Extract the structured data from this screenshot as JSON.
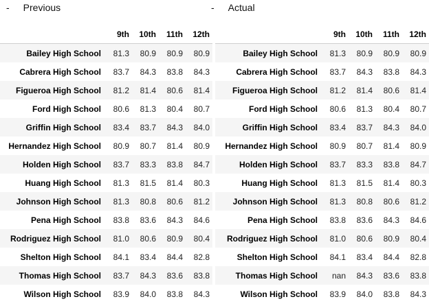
{
  "captions": {
    "left": {
      "dash": "-",
      "label": "Previous"
    },
    "right": {
      "dash": "-",
      "label": "Actual"
    }
  },
  "columns": [
    "9th",
    "10th",
    "11th",
    "12th"
  ],
  "previous": [
    {
      "school": "Bailey High School",
      "values": [
        "81.3",
        "80.9",
        "80.9",
        "80.9"
      ]
    },
    {
      "school": "Cabrera High School",
      "values": [
        "83.7",
        "84.3",
        "83.8",
        "84.3"
      ]
    },
    {
      "school": "Figueroa High School",
      "values": [
        "81.2",
        "81.4",
        "80.6",
        "81.4"
      ]
    },
    {
      "school": "Ford High School",
      "values": [
        "80.6",
        "81.3",
        "80.4",
        "80.7"
      ]
    },
    {
      "school": "Griffin High School",
      "values": [
        "83.4",
        "83.7",
        "84.3",
        "84.0"
      ]
    },
    {
      "school": "Hernandez High School",
      "values": [
        "80.9",
        "80.7",
        "81.4",
        "80.9"
      ]
    },
    {
      "school": "Holden High School",
      "values": [
        "83.7",
        "83.3",
        "83.8",
        "84.7"
      ]
    },
    {
      "school": "Huang High School",
      "values": [
        "81.3",
        "81.5",
        "81.4",
        "80.3"
      ]
    },
    {
      "school": "Johnson High School",
      "values": [
        "81.3",
        "80.8",
        "80.6",
        "81.2"
      ]
    },
    {
      "school": "Pena High School",
      "values": [
        "83.8",
        "83.6",
        "84.3",
        "84.6"
      ]
    },
    {
      "school": "Rodriguez High School",
      "values": [
        "81.0",
        "80.6",
        "80.9",
        "80.4"
      ]
    },
    {
      "school": "Shelton High School",
      "values": [
        "84.1",
        "83.4",
        "84.4",
        "82.8"
      ]
    },
    {
      "school": "Thomas High School",
      "values": [
        "83.7",
        "84.3",
        "83.6",
        "83.8"
      ]
    },
    {
      "school": "Wilson High School",
      "values": [
        "83.9",
        "84.0",
        "83.8",
        "84.3"
      ]
    }
  ],
  "actual": [
    {
      "school": "Bailey High School",
      "values": [
        "81.3",
        "80.9",
        "80.9",
        "80.9"
      ]
    },
    {
      "school": "Cabrera High School",
      "values": [
        "83.7",
        "84.3",
        "83.8",
        "84.3"
      ]
    },
    {
      "school": "Figueroa High School",
      "values": [
        "81.2",
        "81.4",
        "80.6",
        "81.4"
      ]
    },
    {
      "school": "Ford High School",
      "values": [
        "80.6",
        "81.3",
        "80.4",
        "80.7"
      ]
    },
    {
      "school": "Griffin High School",
      "values": [
        "83.4",
        "83.7",
        "84.3",
        "84.0"
      ]
    },
    {
      "school": "Hernandez High School",
      "values": [
        "80.9",
        "80.7",
        "81.4",
        "80.9"
      ]
    },
    {
      "school": "Holden High School",
      "values": [
        "83.7",
        "83.3",
        "83.8",
        "84.7"
      ]
    },
    {
      "school": "Huang High School",
      "values": [
        "81.3",
        "81.5",
        "81.4",
        "80.3"
      ]
    },
    {
      "school": "Johnson High School",
      "values": [
        "81.3",
        "80.8",
        "80.6",
        "81.2"
      ]
    },
    {
      "school": "Pena High School",
      "values": [
        "83.8",
        "83.6",
        "84.3",
        "84.6"
      ]
    },
    {
      "school": "Rodriguez High School",
      "values": [
        "81.0",
        "80.6",
        "80.9",
        "80.4"
      ]
    },
    {
      "school": "Shelton High School",
      "values": [
        "84.1",
        "83.4",
        "84.4",
        "82.8"
      ]
    },
    {
      "school": "Thomas High School",
      "values": [
        "nan",
        "84.3",
        "83.6",
        "83.8"
      ]
    },
    {
      "school": "Wilson High School",
      "values": [
        "83.9",
        "84.0",
        "83.8",
        "84.3"
      ]
    }
  ]
}
